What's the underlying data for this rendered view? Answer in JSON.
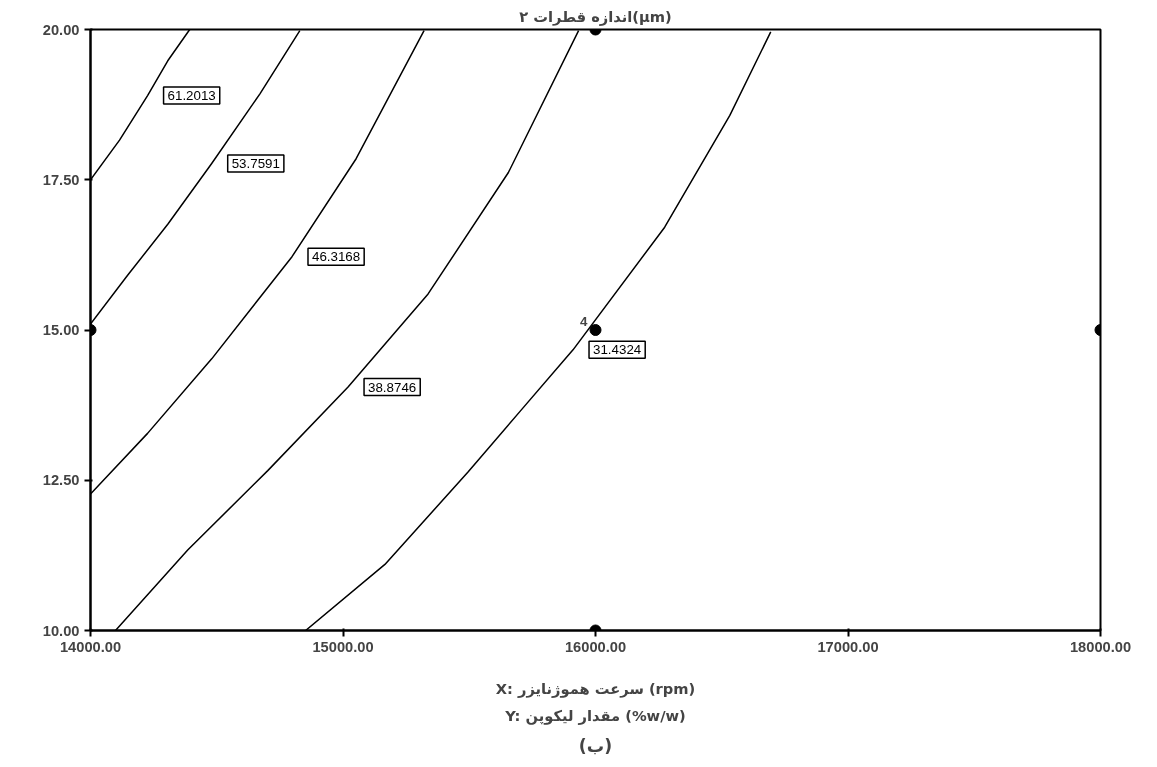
{
  "chart_data": {
    "type": "line",
    "title": "اندازه قطرات ۲(μm)",
    "xlabel": "X: سرعت هموژنایزر (rpm)",
    "xlim": [
      14000,
      18000
    ],
    "ylim": [
      10,
      20
    ],
    "xticks": [
      {
        "value": 14000,
        "label": "14000.00"
      },
      {
        "value": 15000,
        "label": "15000.00"
      },
      {
        "value": 16000,
        "label": "16000.00"
      },
      {
        "value": 17000,
        "label": "17000.00"
      },
      {
        "value": 18000,
        "label": "18000.00"
      }
    ],
    "yticks": [
      {
        "value": 10,
        "label": "10.00"
      },
      {
        "value": 12.5,
        "label": "12.50"
      },
      {
        "value": 15,
        "label": "15.00"
      },
      {
        "value": 17.5,
        "label": "17.50"
      },
      {
        "value": 20,
        "label": "20.00"
      }
    ],
    "grid": false,
    "line_style": "solid",
    "series": [
      {
        "name": "61.2013",
        "color": "#000000",
        "marker": "none",
        "x": [
          14000,
          14115,
          14226,
          14306,
          14393
        ],
        "values": [
          17.5,
          18.16,
          18.9,
          19.48,
          20
        ]
      },
      {
        "name": "53.7591",
        "color": "#000000",
        "marker": "none",
        "x": [
          14000,
          14147,
          14306,
          14480,
          14671,
          14829
        ],
        "values": [
          15.1,
          15.91,
          16.76,
          17.77,
          18.93,
          19.98
        ]
      },
      {
        "name": "46.3168",
        "color": "#000000",
        "marker": "none",
        "x": [
          14000,
          14226,
          14480,
          14798,
          15052,
          15321
        ],
        "values": [
          12.27,
          13.28,
          14.52,
          16.22,
          17.85,
          19.98
        ]
      },
      {
        "name": "38.8746",
        "color": "#000000",
        "marker": "none",
        "x": [
          14099,
          14385,
          14702,
          15020,
          15337,
          15655,
          15933
        ],
        "values": [
          10,
          11.34,
          12.66,
          14.05,
          15.6,
          17.62,
          19.98
        ]
      },
      {
        "name": "31.4324",
        "color": "#000000",
        "marker": "none",
        "x": [
          14852,
          15166,
          15496,
          15702,
          15911,
          16274,
          16532,
          16694
        ],
        "values": [
          10,
          11.1,
          12.64,
          13.65,
          14.67,
          16.71,
          18.57,
          19.96
        ]
      },
      {
        "type": "scatter",
        "color": "#000000",
        "marker": "circle",
        "x": [
          14000,
          16000,
          16000,
          16000,
          18000
        ],
        "values": [
          15,
          20,
          15,
          10,
          15
        ]
      }
    ],
    "annotations": [
      {
        "text": "4",
        "x": 16000,
        "y": 15
      },
      "Y: مقدار لیکوپن (%w/w)",
      "(ب)"
    ]
  }
}
